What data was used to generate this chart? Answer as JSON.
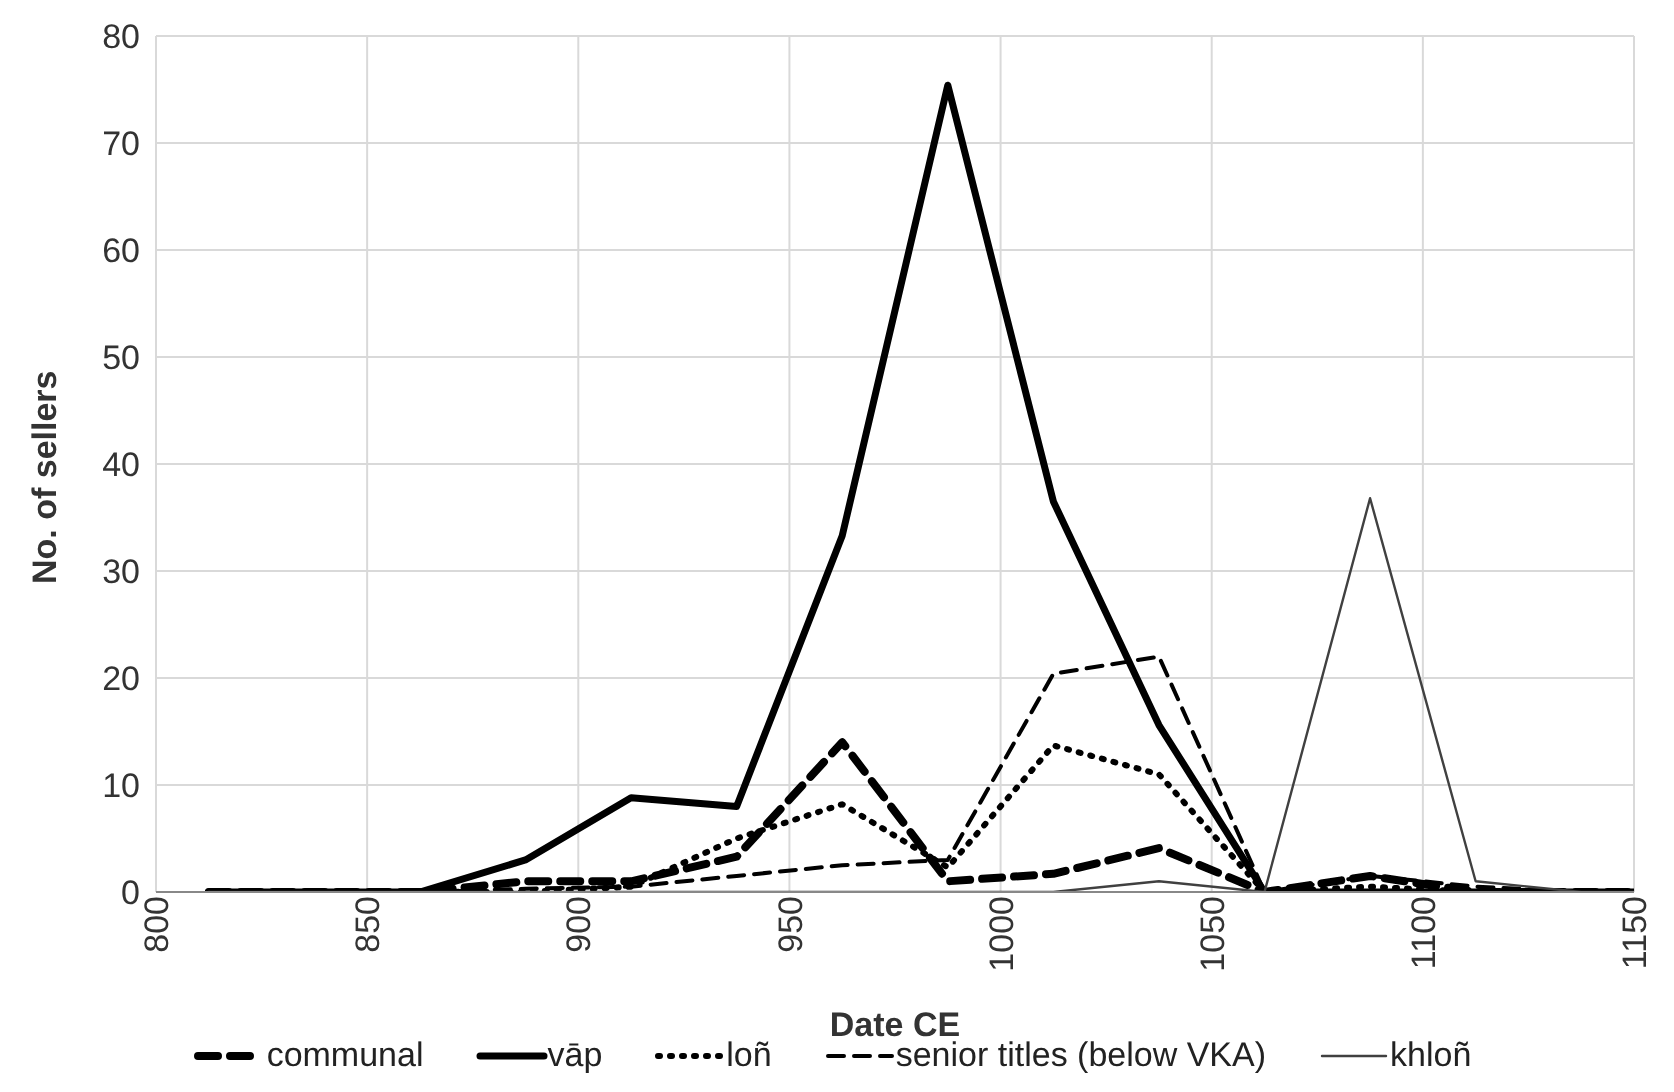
{
  "chart_data": {
    "type": "line",
    "xlabel": "Date CE",
    "ylabel": "No. of sellers",
    "x": [
      812.5,
      837.5,
      862.5,
      887.5,
      912.5,
      937.5,
      962.5,
      987.5,
      1012.5,
      1037.5,
      1062.5,
      1087.5,
      1112.5,
      1137.5,
      1150
    ],
    "xlim": [
      800,
      1150
    ],
    "xticks": [
      800,
      850,
      900,
      950,
      1000,
      1050,
      1100,
      1150
    ],
    "ylim": [
      0,
      80
    ],
    "yticks": [
      0,
      10,
      20,
      30,
      40,
      50,
      60,
      70,
      80
    ],
    "grid": true,
    "legend": "bottom",
    "marker": "none",
    "series": [
      {
        "name": "communal",
        "color": "#000000",
        "line_style": "dashed",
        "values": [
          0,
          0,
          0,
          1,
          1,
          3.3,
          14,
          1,
          1.7,
          4.1,
          0,
          1.5,
          0,
          0,
          0
        ]
      },
      {
        "name": "vāp",
        "color": "#000000",
        "line_style": "solid",
        "values": [
          0,
          0,
          0,
          3,
          8.8,
          8,
          33.3,
          75.4,
          36.5,
          15.6,
          0,
          0,
          0,
          0,
          0
        ]
      },
      {
        "name": "loñ",
        "color": "#000000",
        "line_style": "dotted",
        "values": [
          0,
          0,
          0,
          0,
          0.5,
          5,
          8.2,
          2.3,
          13.7,
          11,
          0,
          0.5,
          0,
          0,
          0
        ]
      },
      {
        "name": "senior titles (below VKA)",
        "color": "#000000",
        "line_style": "dashed",
        "values": [
          0,
          0,
          0,
          0.3,
          0.5,
          1.5,
          2.5,
          3,
          20.4,
          22,
          0,
          1.5,
          0.5,
          0,
          0
        ]
      },
      {
        "name": "khloñ",
        "color": "#404040",
        "line_style": "solid",
        "values": [
          0,
          0,
          0,
          0,
          0,
          0,
          0,
          0,
          0,
          1,
          0,
          36.8,
          1,
          0,
          0
        ]
      }
    ]
  }
}
